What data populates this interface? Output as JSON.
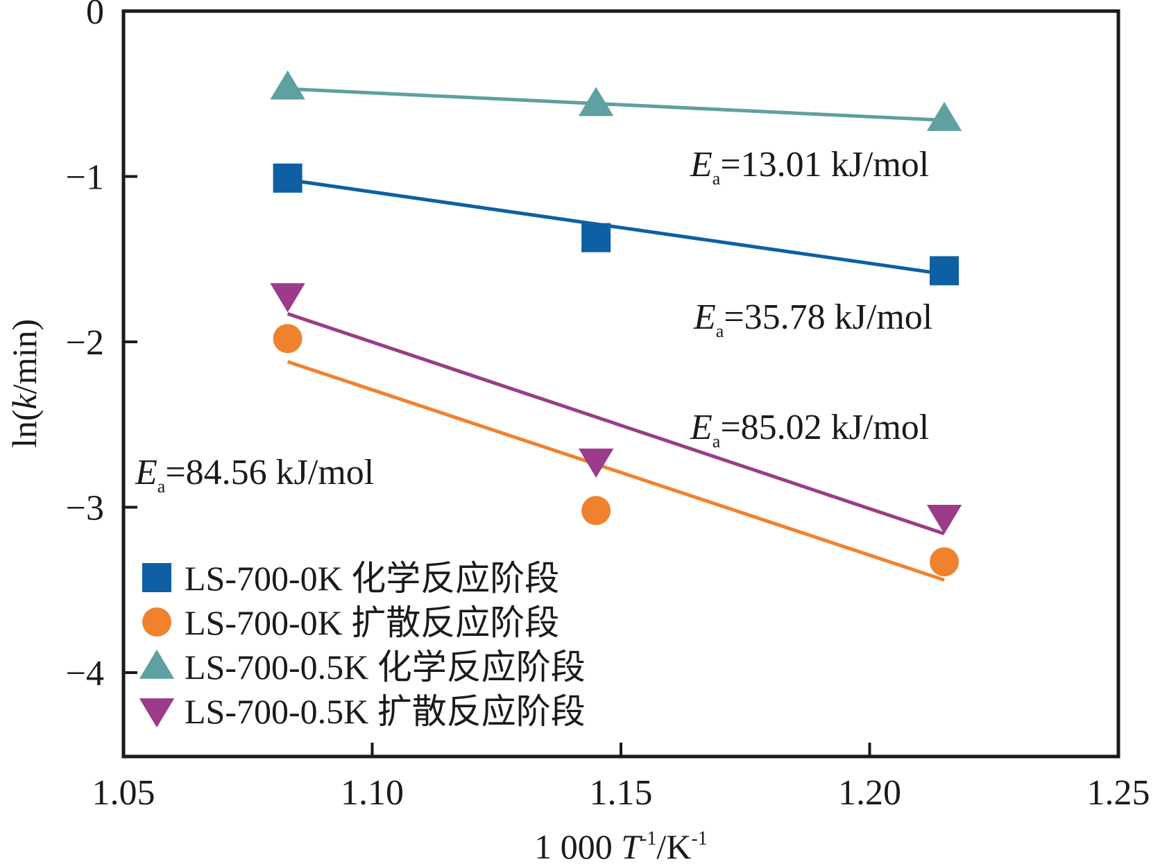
{
  "chart_data": {
    "type": "scatter",
    "title": "",
    "xlabel": "1 000 T⁻¹/K⁻¹",
    "xlabel_parts": {
      "prefix": "1 000 ",
      "var": "T",
      "sup1": "-1",
      "mid": "/K",
      "sup2": "-1"
    },
    "ylabel": "ln(k/min)",
    "ylabel_parts": {
      "pre": "ln(",
      "var": "k",
      "post": "/min)"
    },
    "xlim": [
      1.05,
      1.25
    ],
    "ylim": [
      -4.5,
      0
    ],
    "xticks": [
      1.05,
      1.1,
      1.15,
      1.2,
      1.25
    ],
    "xtick_labels": [
      "1.05",
      "1.10",
      "1.15",
      "1.20",
      "1.25"
    ],
    "yticks": [
      0,
      -1,
      -2,
      -3,
      -4
    ],
    "ytick_labels": [
      "0",
      "−1",
      "−2",
      "−3",
      "−4"
    ],
    "grid": false,
    "legend_position": "bottom-left",
    "series": [
      {
        "name": "LS-700-0K 化学反应阶段",
        "marker": "square",
        "color": "#0e5fa3",
        "x": [
          1.083,
          1.145,
          1.215
        ],
        "y": [
          -1.01,
          -1.37,
          -1.57
        ],
        "fit_line": {
          "x": [
            1.083,
            1.215
          ],
          "y": [
            -1.02,
            -1.59
          ]
        },
        "annotation": {
          "label": "E",
          "sub": "a",
          "text": "=35.78 kJ/mol"
        }
      },
      {
        "name": "LS-700-0K 扩散反应阶段",
        "marker": "circle",
        "color": "#f0822d",
        "x": [
          1.083,
          1.145,
          1.215
        ],
        "y": [
          -1.98,
          -3.02,
          -3.33
        ],
        "fit_line": {
          "x": [
            1.083,
            1.215
          ],
          "y": [
            -2.12,
            -3.44
          ]
        },
        "annotation": {
          "label": "E",
          "sub": "a",
          "text": "=84.56 kJ/mol"
        }
      },
      {
        "name": "LS-700-0.5K 化学反应阶段",
        "marker": "triangle-up",
        "color": "#5fa0a0",
        "x": [
          1.083,
          1.145,
          1.215
        ],
        "y": [
          -0.46,
          -0.56,
          -0.65
        ],
        "fit_line": {
          "x": [
            1.083,
            1.215
          ],
          "y": [
            -0.47,
            -0.66
          ]
        },
        "annotation": {
          "label": "E",
          "sub": "a",
          "text": "=13.01 kJ/mol"
        }
      },
      {
        "name": "LS-700-0.5K 扩散反应阶段",
        "marker": "triangle-down",
        "color": "#9b3b8a",
        "x": [
          1.083,
          1.145,
          1.215
        ],
        "y": [
          -1.72,
          -2.72,
          -3.06
        ],
        "fit_line": {
          "x": [
            1.083,
            1.215
          ],
          "y": [
            -1.83,
            -3.16
          ]
        },
        "annotation": {
          "label": "E",
          "sub": "a",
          "text": "=85.02 kJ/mol"
        }
      }
    ]
  }
}
